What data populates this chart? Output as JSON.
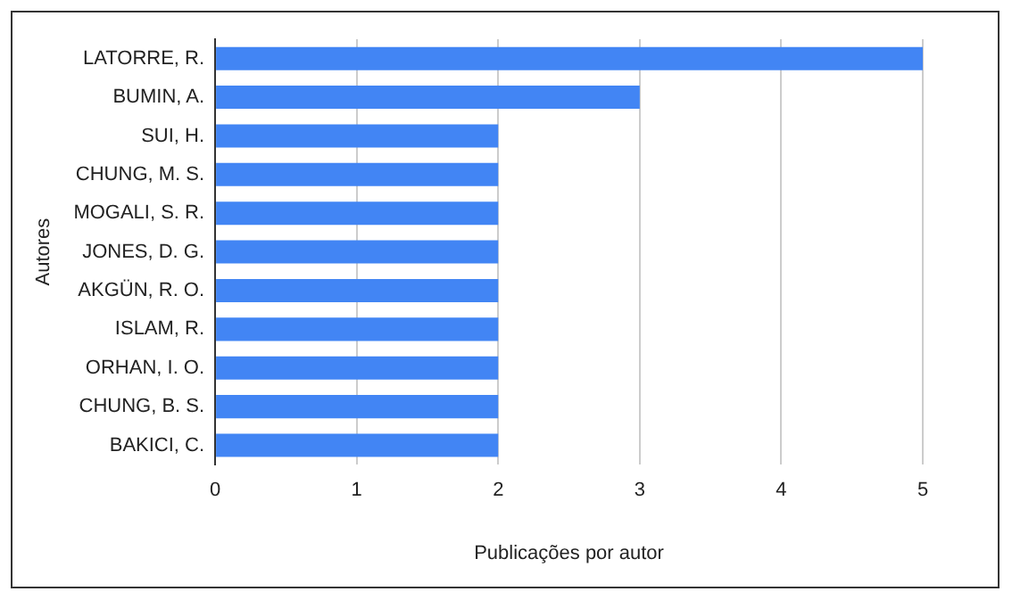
{
  "chart_data": {
    "type": "bar",
    "orientation": "horizontal",
    "xlabel": "Publicações por autor",
    "ylabel": "Autores",
    "categories": [
      "LATORRE, R.",
      "BUMIN, A.",
      "SUI, H.",
      "CHUNG, M. S.",
      "MOGALI, S. R.",
      "JONES, D. G.",
      "AKGÜN, R. O.",
      "ISLAM, R.",
      "ORHAN, I. O.",
      "CHUNG, B. S.",
      "BAKICI, C."
    ],
    "values": [
      5,
      3,
      2,
      2,
      2,
      2,
      2,
      2,
      2,
      2,
      2
    ],
    "color": "#4285f4",
    "xlim": [
      0,
      5
    ],
    "xticks": [
      0,
      1,
      2,
      3,
      4,
      5
    ],
    "grid": "x",
    "legend": false
  }
}
